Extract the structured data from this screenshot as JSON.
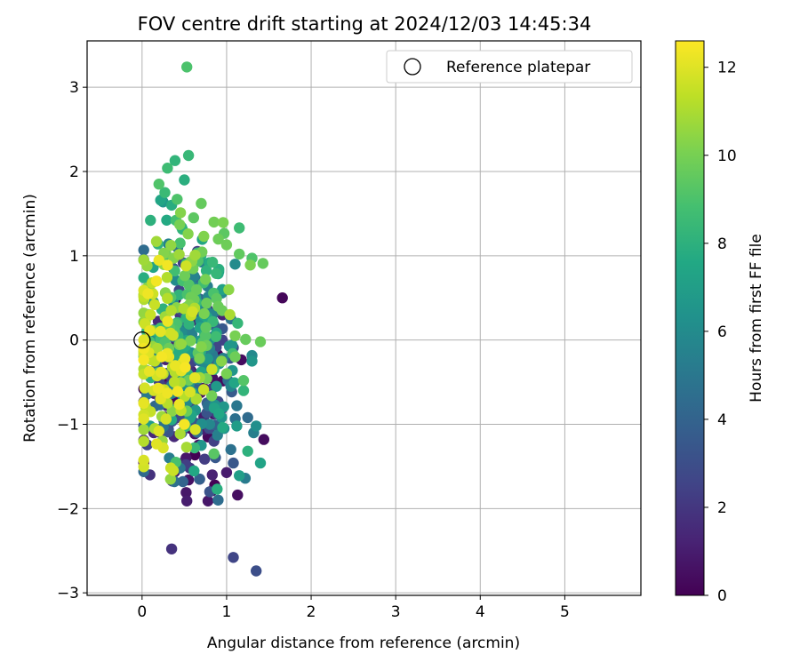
{
  "chart_data": {
    "type": "scatter",
    "title": "FOV centre drift starting at 2024/12/03 14:45:34",
    "xlabel": "Angular distance from reference (arcmin)",
    "ylabel": "Rotation from reference (arcmin)",
    "xlim": [
      -0.65,
      5.9
    ],
    "ylim": [
      -3.03,
      3.55
    ],
    "xticks": [
      0,
      1,
      2,
      3,
      4,
      5
    ],
    "yticks": [
      -3,
      -2,
      -1,
      0,
      1,
      2,
      3
    ],
    "grid": true,
    "colormap": "viridis",
    "colorbar": {
      "label": "Hours from first FF file",
      "range": [
        0,
        12.6
      ],
      "ticks": [
        0,
        2,
        4,
        6,
        8,
        10,
        12
      ]
    },
    "legend": {
      "position": "top-right",
      "entries": [
        {
          "label": "Reference platepar"
        }
      ]
    },
    "reference": {
      "x": 0,
      "y": 0,
      "label": "Reference platepar"
    },
    "point_count": 600,
    "points": [
      [
        0.53,
        3.24,
        9.0
      ],
      [
        0.55,
        2.19,
        8.4
      ],
      [
        0.39,
        2.13,
        8.2
      ],
      [
        0.3,
        2.04,
        8.6
      ],
      [
        0.5,
        1.9,
        7.9
      ],
      [
        0.2,
        1.85,
        9.1
      ],
      [
        0.27,
        1.75,
        8.5
      ],
      [
        0.22,
        1.66,
        7.4
      ],
      [
        0.35,
        1.6,
        7.8
      ],
      [
        0.7,
        1.62,
        9.6
      ],
      [
        0.1,
        1.42,
        8.0
      ],
      [
        0.4,
        1.42,
        8.8
      ],
      [
        0.61,
        1.45,
        9.4
      ],
      [
        0.85,
        1.4,
        9.9
      ],
      [
        1.15,
        1.33,
        8.6
      ],
      [
        0.17,
        1.17,
        10.8
      ],
      [
        0.28,
        1.03,
        9.9
      ],
      [
        0.45,
        1.15,
        8.9
      ],
      [
        0.73,
        1.23,
        10.2
      ],
      [
        1.0,
        1.13,
        9.8
      ],
      [
        1.15,
        1.02,
        9.5
      ],
      [
        1.28,
        0.89,
        10.1
      ],
      [
        1.43,
        0.91,
        9.6
      ],
      [
        1.66,
        0.5,
        0.2
      ],
      [
        1.1,
        0.9,
        6.0
      ],
      [
        0.52,
        0.88,
        11.7
      ],
      [
        0.75,
        0.72,
        10.0
      ],
      [
        0.95,
        0.6,
        7.2
      ],
      [
        0.06,
        0.88,
        10.6
      ],
      [
        0.12,
        0.68,
        11.4
      ],
      [
        0.17,
        0.7,
        12.4
      ],
      [
        0.07,
        0.55,
        12.3
      ],
      [
        0.3,
        0.5,
        9.4
      ],
      [
        0.6,
        0.45,
        6.5
      ],
      [
        0.75,
        0.38,
        5.3
      ],
      [
        0.85,
        0.32,
        4.0
      ],
      [
        1.05,
        0.25,
        4.8
      ],
      [
        0.25,
        0.37,
        8.0
      ],
      [
        0.45,
        0.3,
        2.0
      ],
      [
        0.57,
        0.23,
        1.1
      ],
      [
        0.7,
        0.3,
        3.5
      ],
      [
        0.9,
        0.4,
        9.7
      ],
      [
        0.1,
        0.3,
        11.5
      ],
      [
        0.04,
        0.22,
        10.7
      ],
      [
        0.09,
        0.11,
        12.2
      ],
      [
        0.2,
        0.05,
        6.8
      ],
      [
        0.4,
        0.1,
        3.0
      ],
      [
        0.55,
        0.0,
        4.5
      ],
      [
        0.75,
        0.05,
        9.2
      ],
      [
        0.95,
        0.0,
        2.5
      ],
      [
        1.1,
        0.05,
        10.0
      ],
      [
        1.4,
        -0.02,
        9.7
      ],
      [
        0.04,
        -0.05,
        11.8
      ],
      [
        0.08,
        -0.15,
        12.0
      ],
      [
        0.18,
        -0.1,
        11.0
      ],
      [
        0.3,
        -0.2,
        6.2
      ],
      [
        0.45,
        -0.25,
        1.6
      ],
      [
        0.65,
        -0.2,
        3.2
      ],
      [
        0.8,
        -0.1,
        5.5
      ],
      [
        0.94,
        -0.25,
        10.3
      ],
      [
        1.1,
        -0.2,
        9.8
      ],
      [
        1.3,
        -0.25,
        6.6
      ],
      [
        0.15,
        -0.25,
        11.4
      ],
      [
        0.25,
        -0.4,
        10.9
      ],
      [
        0.35,
        -0.45,
        2.2
      ],
      [
        0.5,
        -0.4,
        4.2
      ],
      [
        0.7,
        -0.38,
        7.5
      ],
      [
        0.85,
        -0.35,
        8.5
      ],
      [
        1.0,
        -0.4,
        10.0
      ],
      [
        1.2,
        -0.48,
        9.2
      ],
      [
        0.14,
        -0.6,
        11.8
      ],
      [
        0.22,
        -0.7,
        12.1
      ],
      [
        0.38,
        -0.62,
        2.8
      ],
      [
        0.55,
        -0.55,
        5.0
      ],
      [
        0.65,
        -0.6,
        4.0
      ],
      [
        0.88,
        -0.55,
        6.8
      ],
      [
        1.05,
        -0.55,
        5.7
      ],
      [
        1.2,
        -0.6,
        8.2
      ],
      [
        0.1,
        -0.85,
        11.5
      ],
      [
        0.3,
        -0.75,
        11.2
      ],
      [
        0.47,
        -0.8,
        3.7
      ],
      [
        0.6,
        -0.8,
        1.0
      ],
      [
        0.78,
        -0.78,
        4.6
      ],
      [
        0.95,
        -0.8,
        6.0
      ],
      [
        1.12,
        -0.78,
        5.0
      ],
      [
        0.15,
        -1.05,
        11.0
      ],
      [
        0.2,
        -1.08,
        12.0
      ],
      [
        0.3,
        -0.98,
        1.7
      ],
      [
        0.5,
        -1.0,
        12.4
      ],
      [
        0.65,
        -1.05,
        3.3
      ],
      [
        0.8,
        -1.0,
        5.8
      ],
      [
        0.97,
        -1.05,
        6.3
      ],
      [
        1.12,
        -1.02,
        6.9
      ],
      [
        1.25,
        -0.92,
        4.4
      ],
      [
        1.35,
        -1.02,
        6.2
      ],
      [
        0.22,
        -1.1,
        1.4
      ],
      [
        0.47,
        -1.1,
        3.6
      ],
      [
        0.62,
        -1.28,
        8.4
      ],
      [
        0.78,
        -1.15,
        0.3
      ],
      [
        0.85,
        -1.2,
        2.4
      ],
      [
        1.05,
        -1.3,
        4.7
      ],
      [
        1.32,
        -1.1,
        5.4
      ],
      [
        1.44,
        -1.18,
        0.4
      ],
      [
        0.25,
        -1.28,
        11.9
      ],
      [
        0.4,
        -1.45,
        8.9
      ],
      [
        0.52,
        -1.4,
        0.8
      ],
      [
        0.7,
        -1.25,
        6.5
      ],
      [
        0.85,
        -1.35,
        9.3
      ],
      [
        1.25,
        -1.32,
        8.0
      ],
      [
        1.4,
        -1.46,
        7.3
      ],
      [
        0.37,
        -1.55,
        11.6
      ],
      [
        0.45,
        -1.52,
        4.9
      ],
      [
        0.52,
        -1.48,
        2.3
      ],
      [
        0.68,
        -1.65,
        3.9
      ],
      [
        0.83,
        -1.6,
        1.2
      ],
      [
        1.08,
        -1.46,
        3.4
      ],
      [
        1.15,
        -1.61,
        7.0
      ],
      [
        1.22,
        -1.64,
        5.2
      ],
      [
        0.55,
        -1.66,
        0.6
      ],
      [
        0.8,
        -1.8,
        3.2
      ],
      [
        0.78,
        -1.91,
        0.8
      ],
      [
        0.9,
        -1.9,
        4.5
      ],
      [
        0.53,
        -1.91,
        1.0
      ],
      [
        1.13,
        -1.84,
        0.5
      ],
      [
        0.35,
        -2.48,
        1.8
      ],
      [
        1.08,
        -2.58,
        2.6
      ],
      [
        1.35,
        -2.74,
        3.0
      ]
    ]
  }
}
